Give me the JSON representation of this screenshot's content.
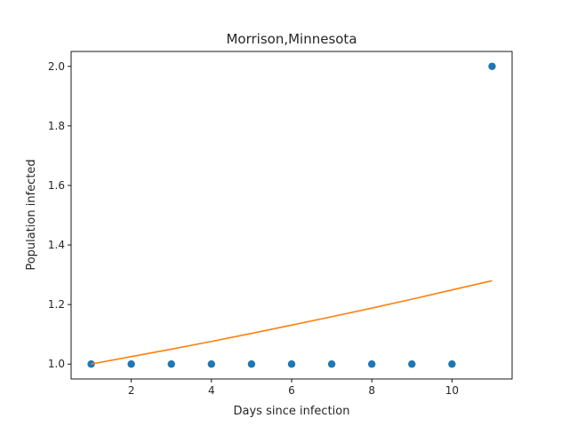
{
  "chart_data": {
    "type": "scatter",
    "title": "Morrison,Minnesota",
    "xlabel": "Days since infection",
    "ylabel": "Population infected",
    "xlim": [
      0.5,
      11.5
    ],
    "ylim": [
      0.95,
      2.05
    ],
    "xticks": [
      2,
      4,
      6,
      8,
      10
    ],
    "yticks": [
      1.0,
      1.2,
      1.4,
      1.6,
      1.8,
      2.0
    ],
    "ytick_labels": [
      "1.0",
      "1.2",
      "1.4",
      "1.6",
      "1.8",
      "2.0"
    ],
    "grid": false,
    "series": [
      {
        "kind": "scatter",
        "color": "#1f77b4",
        "x": [
          1,
          2,
          3,
          4,
          5,
          6,
          7,
          8,
          9,
          10,
          11
        ],
        "y": [
          1,
          1,
          1,
          1,
          1,
          1,
          1,
          1,
          1,
          1,
          2
        ]
      },
      {
        "kind": "line",
        "color": "#ff7f0e",
        "x": [
          1,
          2,
          3,
          4,
          5,
          6,
          7,
          8,
          9,
          10,
          11
        ],
        "y": [
          1.0,
          1.025,
          1.05,
          1.076,
          1.103,
          1.131,
          1.159,
          1.188,
          1.218,
          1.249,
          1.28
        ]
      }
    ]
  }
}
